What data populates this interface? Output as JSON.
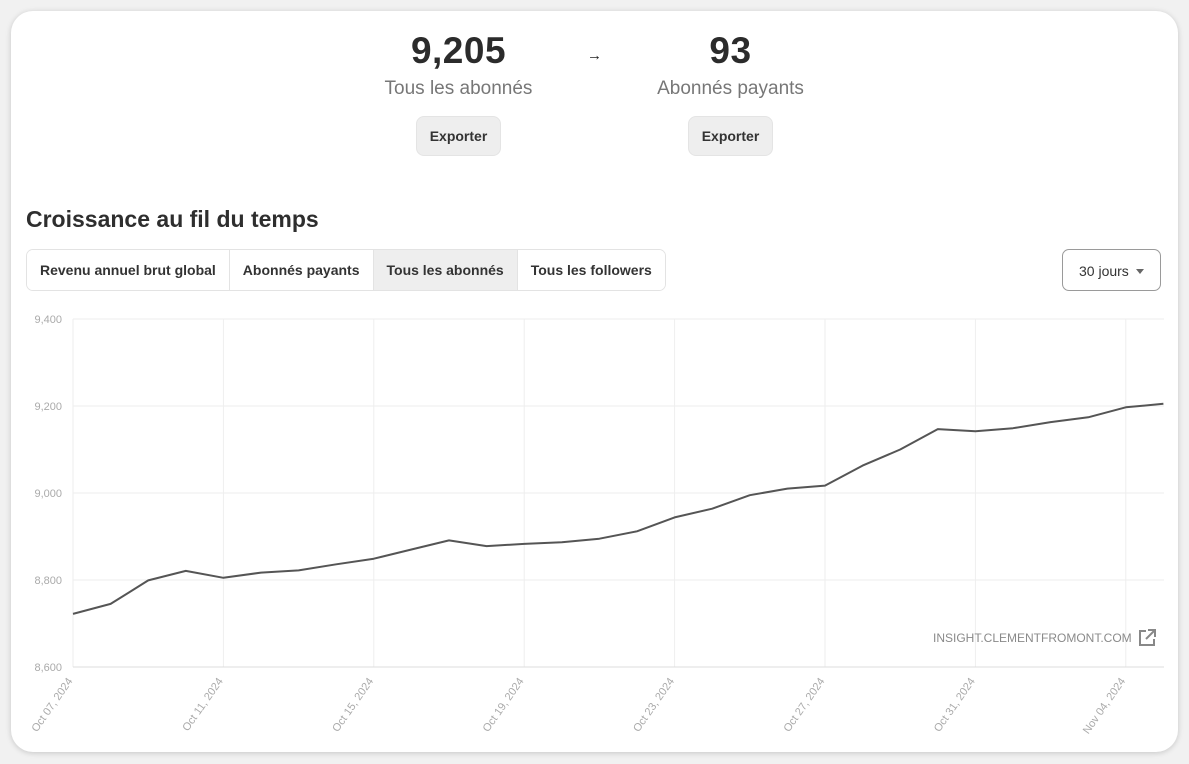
{
  "stats": [
    {
      "value": "9,205",
      "label": "Tous les abonnés",
      "button": "Exporter"
    },
    {
      "value": "93",
      "label": "Abonnés payants",
      "button": "Exporter"
    }
  ],
  "arrow_icon": "→",
  "section_title": "Croissance au fil du temps",
  "tabs": [
    {
      "label": "Revenu annuel brut global",
      "active": false
    },
    {
      "label": "Abonnés payants",
      "active": false
    },
    {
      "label": "Tous les abonnés",
      "active": true
    },
    {
      "label": "Tous les followers",
      "active": false
    }
  ],
  "range_select": {
    "value": "30 jours"
  },
  "watermark": {
    "text": "INSIGHT.CLEMENTFROMONT.COM",
    "icon": "external-link-icon"
  },
  "colors": {
    "line": "#555555",
    "grid": "#eeeeee",
    "tick": "#aaaaaa"
  },
  "chart_data": {
    "type": "line",
    "ylim": [
      8600,
      9400
    ],
    "y_ticks": [
      8600,
      8800,
      9000,
      9200,
      9400
    ],
    "y_tick_labels": [
      "8,600",
      "8,800",
      "9,000",
      "9,200",
      "9,400"
    ],
    "x_tick_labels": [
      "Oct 07, 2024",
      "Oct 11, 2024",
      "Oct 15, 2024",
      "Oct 19, 2024",
      "Oct 23, 2024",
      "Oct 27, 2024",
      "Oct 31, 2024",
      "Nov 04, 2024"
    ],
    "x": [
      "2024-10-07",
      "2024-10-08",
      "2024-10-09",
      "2024-10-10",
      "2024-10-11",
      "2024-10-12",
      "2024-10-13",
      "2024-10-14",
      "2024-10-15",
      "2024-10-16",
      "2024-10-17",
      "2024-10-18",
      "2024-10-19",
      "2024-10-20",
      "2024-10-21",
      "2024-10-22",
      "2024-10-23",
      "2024-10-24",
      "2024-10-25",
      "2024-10-26",
      "2024-10-27",
      "2024-10-28",
      "2024-10-29",
      "2024-10-30",
      "2024-10-31",
      "2024-11-01",
      "2024-11-02",
      "2024-11-03",
      "2024-11-04",
      "2024-11-05"
    ],
    "series": [
      {
        "values": [
          8722,
          8745,
          8799,
          8821,
          8805,
          8817,
          8822,
          8836,
          8849,
          8870,
          8891,
          8878,
          8883,
          8887,
          8895,
          8912,
          8944,
          8964,
          8995,
          9010,
          9017,
          9063,
          9100,
          9147,
          9142,
          9149,
          9163,
          9174,
          9197,
          9205
        ]
      }
    ],
    "grid": true
  }
}
